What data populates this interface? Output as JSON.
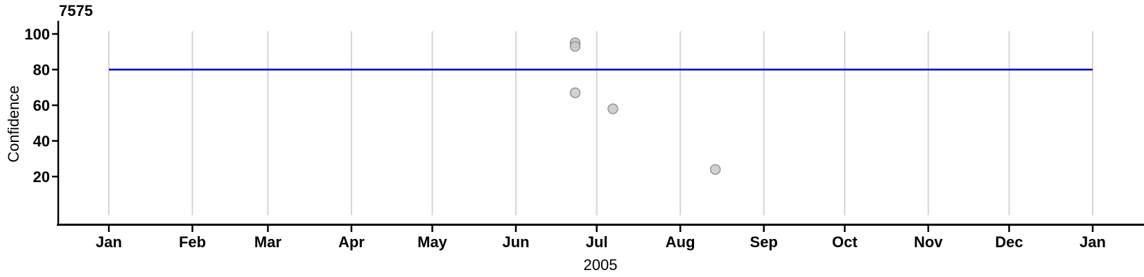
{
  "chart_data": {
    "type": "scatter",
    "title": "7575",
    "xlabel": "2005",
    "ylabel": "Confidence",
    "x_range": [
      "2005-01-01",
      "2006-01-01"
    ],
    "x_tick_labels": [
      "Jan",
      "Feb",
      "Mar",
      "Apr",
      "May",
      "Jun",
      "Jul",
      "Aug",
      "Sep",
      "Oct",
      "Nov",
      "Dec",
      "Jan"
    ],
    "y_ticks": [
      20,
      40,
      60,
      80,
      100
    ],
    "y_tick_range": [
      20,
      100
    ],
    "grid": "vertical-monthly",
    "legend": "none",
    "points": [
      {
        "date": "2005-06-23",
        "confidence": 95
      },
      {
        "date": "2005-06-23",
        "confidence": 93
      },
      {
        "date": "2005-06-23",
        "confidence": 67
      },
      {
        "date": "2005-07-07",
        "confidence": 58
      },
      {
        "date": "2005-08-14",
        "confidence": 24
      }
    ],
    "reference_line": {
      "orientation": "horizontal",
      "value": 80,
      "color": "#0101CD"
    },
    "colors": {
      "point_fill": "#C9C9C9",
      "point_stroke": "#8A8A8A",
      "grid": "#D5D5D5",
      "axis": "#000000",
      "background": "#FFFFFF"
    }
  }
}
